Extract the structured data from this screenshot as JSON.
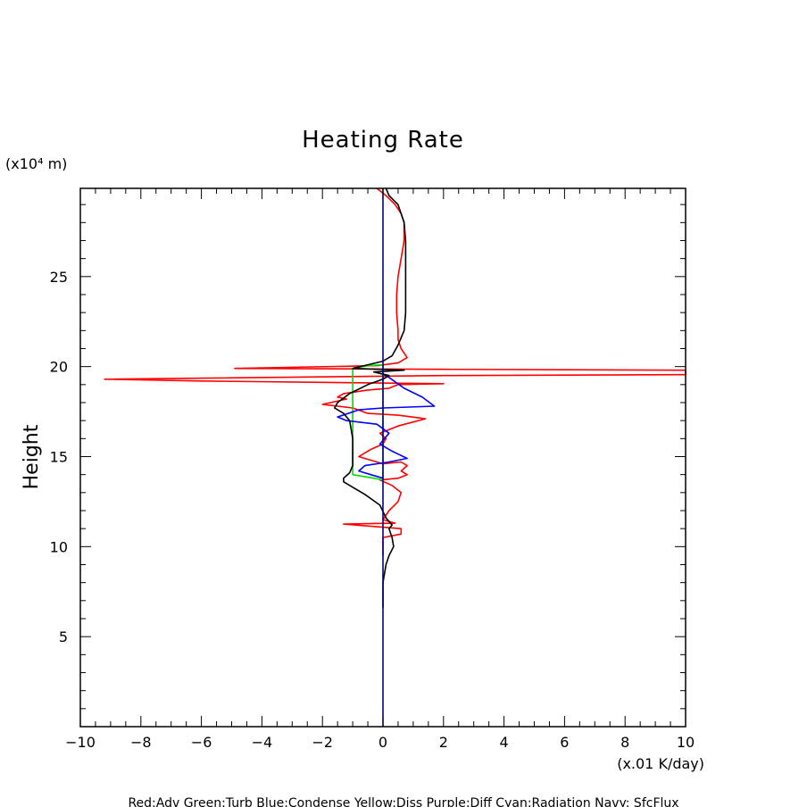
{
  "chart_data": {
    "type": "line",
    "title": "Heating Rate",
    "xlabel": "(x.01 K/day)",
    "ylabel": "Height",
    "yunit": "(x10⁴ m)",
    "xlim": [
      -10,
      10
    ],
    "ylim": [
      0,
      29.9
    ],
    "xticks": [
      "−10",
      "−8",
      "−6",
      "−4",
      "−2",
      "0",
      "2",
      "4",
      "6",
      "8",
      "10"
    ],
    "xtick_values": [
      -10,
      -8,
      -6,
      -4,
      -2,
      0,
      2,
      4,
      6,
      8,
      10
    ],
    "yticks": [
      "5",
      "10",
      "15",
      "20",
      "25"
    ],
    "ytick_values": [
      5,
      10,
      15,
      20,
      25
    ],
    "grid": false,
    "legend_text": "Red:Adv  Green:Turb  Blue:Condense  Yellow:Diss  Purple:Diff  Cyan:Radiation  Navy: SfcFlux",
    "series": [
      {
        "name": "Red:Adv",
        "color": "#ff0000",
        "points": [
          [
            -0.2,
            29.9
          ],
          [
            0.1,
            29.5
          ],
          [
            0.4,
            29.0
          ],
          [
            0.6,
            28.5
          ],
          [
            0.7,
            28.0
          ],
          [
            0.7,
            27.0
          ],
          [
            0.6,
            26.0
          ],
          [
            0.5,
            25.0
          ],
          [
            0.45,
            24.0
          ],
          [
            0.45,
            23.0
          ],
          [
            0.5,
            22.0
          ],
          [
            0.5,
            21.5
          ],
          [
            0.6,
            21.0
          ],
          [
            0.8,
            20.5
          ],
          [
            0.5,
            20.2
          ],
          [
            -0.2,
            20.05
          ],
          [
            -4.9,
            19.9
          ],
          [
            2.0,
            19.85
          ],
          [
            10.0,
            19.8
          ],
          [
            10.0,
            19.55
          ],
          [
            2.0,
            19.5
          ],
          [
            -9.2,
            19.3
          ],
          [
            -6.0,
            19.2
          ],
          [
            2.0,
            19.05
          ],
          [
            0.5,
            19.0
          ],
          [
            0.2,
            18.8
          ],
          [
            -0.5,
            18.7
          ],
          [
            -1.3,
            18.5
          ],
          [
            -1.5,
            18.3
          ],
          [
            -1.2,
            18.2
          ],
          [
            -2.0,
            17.9
          ],
          [
            -1.0,
            17.7
          ],
          [
            -0.5,
            17.4
          ],
          [
            0.5,
            17.3
          ],
          [
            1.4,
            17.1
          ],
          [
            0.5,
            16.7
          ],
          [
            -0.1,
            16.3
          ],
          [
            0.1,
            16.0
          ],
          [
            0.0,
            15.7
          ],
          [
            -0.4,
            15.4
          ],
          [
            -0.8,
            15.0
          ],
          [
            -0.4,
            14.8
          ],
          [
            0.0,
            14.6
          ],
          [
            0.6,
            14.7
          ],
          [
            0.8,
            14.5
          ],
          [
            0.6,
            14.2
          ],
          [
            0.8,
            14.0
          ],
          [
            0.5,
            13.8
          ],
          [
            -0.1,
            13.7
          ],
          [
            0.3,
            13.4
          ],
          [
            0.6,
            13.0
          ],
          [
            0.5,
            12.5
          ],
          [
            0.2,
            12.0
          ],
          [
            0.0,
            11.5
          ],
          [
            0.4,
            11.3
          ],
          [
            -1.3,
            11.25
          ],
          [
            0.6,
            11.0
          ],
          [
            0.6,
            10.7
          ],
          [
            0.0,
            10.5
          ],
          [
            0.0,
            10.0
          ],
          [
            0.0,
            9.5
          ]
        ]
      },
      {
        "name": "Green:Turb",
        "color": "#00dd00",
        "points": [
          [
            -1.0,
            14.0
          ],
          [
            -1.0,
            17.5
          ],
          [
            -1.0,
            19.9
          ],
          [
            -0.5,
            20.05
          ],
          [
            0.0,
            20.1
          ],
          [
            0.0,
            13.7
          ],
          [
            -0.3,
            13.8
          ],
          [
            -1.0,
            14.0
          ]
        ]
      },
      {
        "name": "Blue:Condense",
        "color": "#0000ff",
        "points": [
          [
            0.0,
            19.6
          ],
          [
            0.2,
            19.4
          ],
          [
            0.7,
            18.8
          ],
          [
            1.3,
            18.3
          ],
          [
            1.7,
            17.8
          ],
          [
            0.0,
            17.7
          ],
          [
            -0.8,
            17.6
          ],
          [
            -1.5,
            17.2
          ],
          [
            -1.2,
            17.0
          ],
          [
            -0.2,
            16.8
          ],
          [
            0.2,
            16.3
          ],
          [
            -0.1,
            15.7
          ],
          [
            0.3,
            15.3
          ],
          [
            0.8,
            14.9
          ],
          [
            0.2,
            14.7
          ],
          [
            -0.6,
            14.5
          ],
          [
            -0.8,
            14.2
          ],
          [
            -0.4,
            14.0
          ],
          [
            0.0,
            13.8
          ]
        ]
      },
      {
        "name": "Black",
        "color": "#000000",
        "points": [
          [
            0.1,
            29.9
          ],
          [
            0.2,
            29.5
          ],
          [
            0.5,
            29.0
          ],
          [
            0.7,
            28.0
          ],
          [
            0.75,
            27.0
          ],
          [
            0.75,
            25.0
          ],
          [
            0.75,
            23.0
          ],
          [
            0.7,
            22.0
          ],
          [
            0.5,
            21.2
          ],
          [
            0.3,
            20.6
          ],
          [
            0.0,
            20.3
          ],
          [
            -0.5,
            20.1
          ],
          [
            -1.0,
            19.9
          ],
          [
            0.7,
            19.8
          ],
          [
            -0.3,
            19.7
          ],
          [
            0.2,
            19.5
          ],
          [
            0.0,
            19.3
          ],
          [
            -0.5,
            19.0
          ],
          [
            -1.1,
            18.5
          ],
          [
            -1.5,
            18.0
          ],
          [
            -1.6,
            17.7
          ],
          [
            -1.3,
            17.4
          ],
          [
            -1.1,
            17.0
          ],
          [
            -1.0,
            16.0
          ],
          [
            -1.0,
            15.5
          ],
          [
            -1.0,
            15.0
          ],
          [
            -1.0,
            14.5
          ],
          [
            -1.1,
            14.1
          ],
          [
            -1.3,
            13.8
          ],
          [
            -1.3,
            13.6
          ],
          [
            -1.0,
            13.3
          ],
          [
            -0.6,
            12.9
          ],
          [
            -0.1,
            12.3
          ],
          [
            0.1,
            11.6
          ],
          [
            0.3,
            11.2
          ],
          [
            0.2,
            11.0
          ],
          [
            0.3,
            10.5
          ],
          [
            0.35,
            10.0
          ],
          [
            0.2,
            9.5
          ],
          [
            0.1,
            9.0
          ],
          [
            0.0,
            8.0
          ],
          [
            0.0,
            7.5
          ],
          [
            0.0,
            6.6
          ]
        ]
      },
      {
        "name": "Navy: SfcFlux",
        "color": "#000080",
        "points": [
          [
            0.0,
            0.0
          ],
          [
            0.0,
            29.9
          ]
        ]
      }
    ]
  }
}
